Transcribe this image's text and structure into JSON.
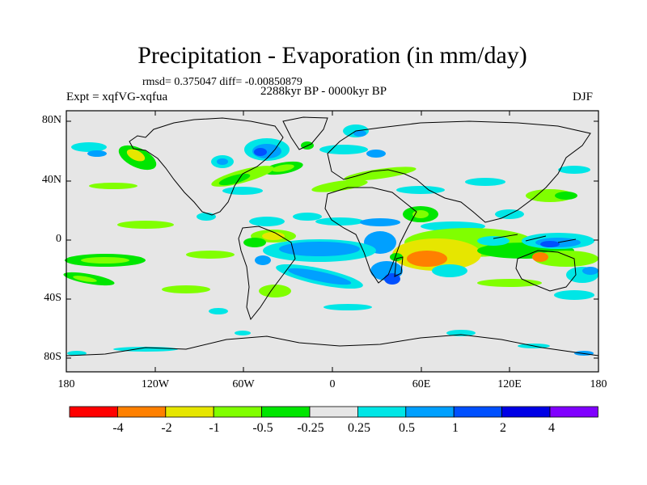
{
  "title": "Precipitation - Evaporation (in mm/day)",
  "stats": "rmsd= 0.375047  diff= -0.00850879",
  "expt": "Expt = xqfVG-xqfua",
  "period": "2288kyr BP - 0000kyr BP",
  "season": "DJF",
  "lat_labels": [
    "80N",
    "40N",
    "0",
    "40S",
    "80S"
  ],
  "lon_labels": [
    "180",
    "120W",
    "60W",
    "0",
    "60E",
    "120E",
    "180"
  ],
  "colorbar": {
    "labels": [
      "-4",
      "-2",
      "-1",
      "-0.5",
      "-0.25",
      "0.25",
      "0.5",
      "1",
      "2",
      "4"
    ],
    "colors": [
      "#ff0000",
      "#ff8000",
      "#e6e600",
      "#80ff00",
      "#00e600",
      "#e6e6e6",
      "#00e6e6",
      "#00a0ff",
      "#0050ff",
      "#0000e6",
      "#8000ff"
    ]
  },
  "map_colors": {
    "background": "#e6e6e6",
    "coastline": "#000000",
    "neg4": "#ff0000",
    "neg2": "#ff8000",
    "neg1": "#e6e600",
    "neg05": "#80ff00",
    "neg025": "#00e600",
    "pos025": "#00e6e6",
    "pos05": "#00a0ff",
    "pos1": "#0050ff",
    "pos2": "#0000e6"
  }
}
